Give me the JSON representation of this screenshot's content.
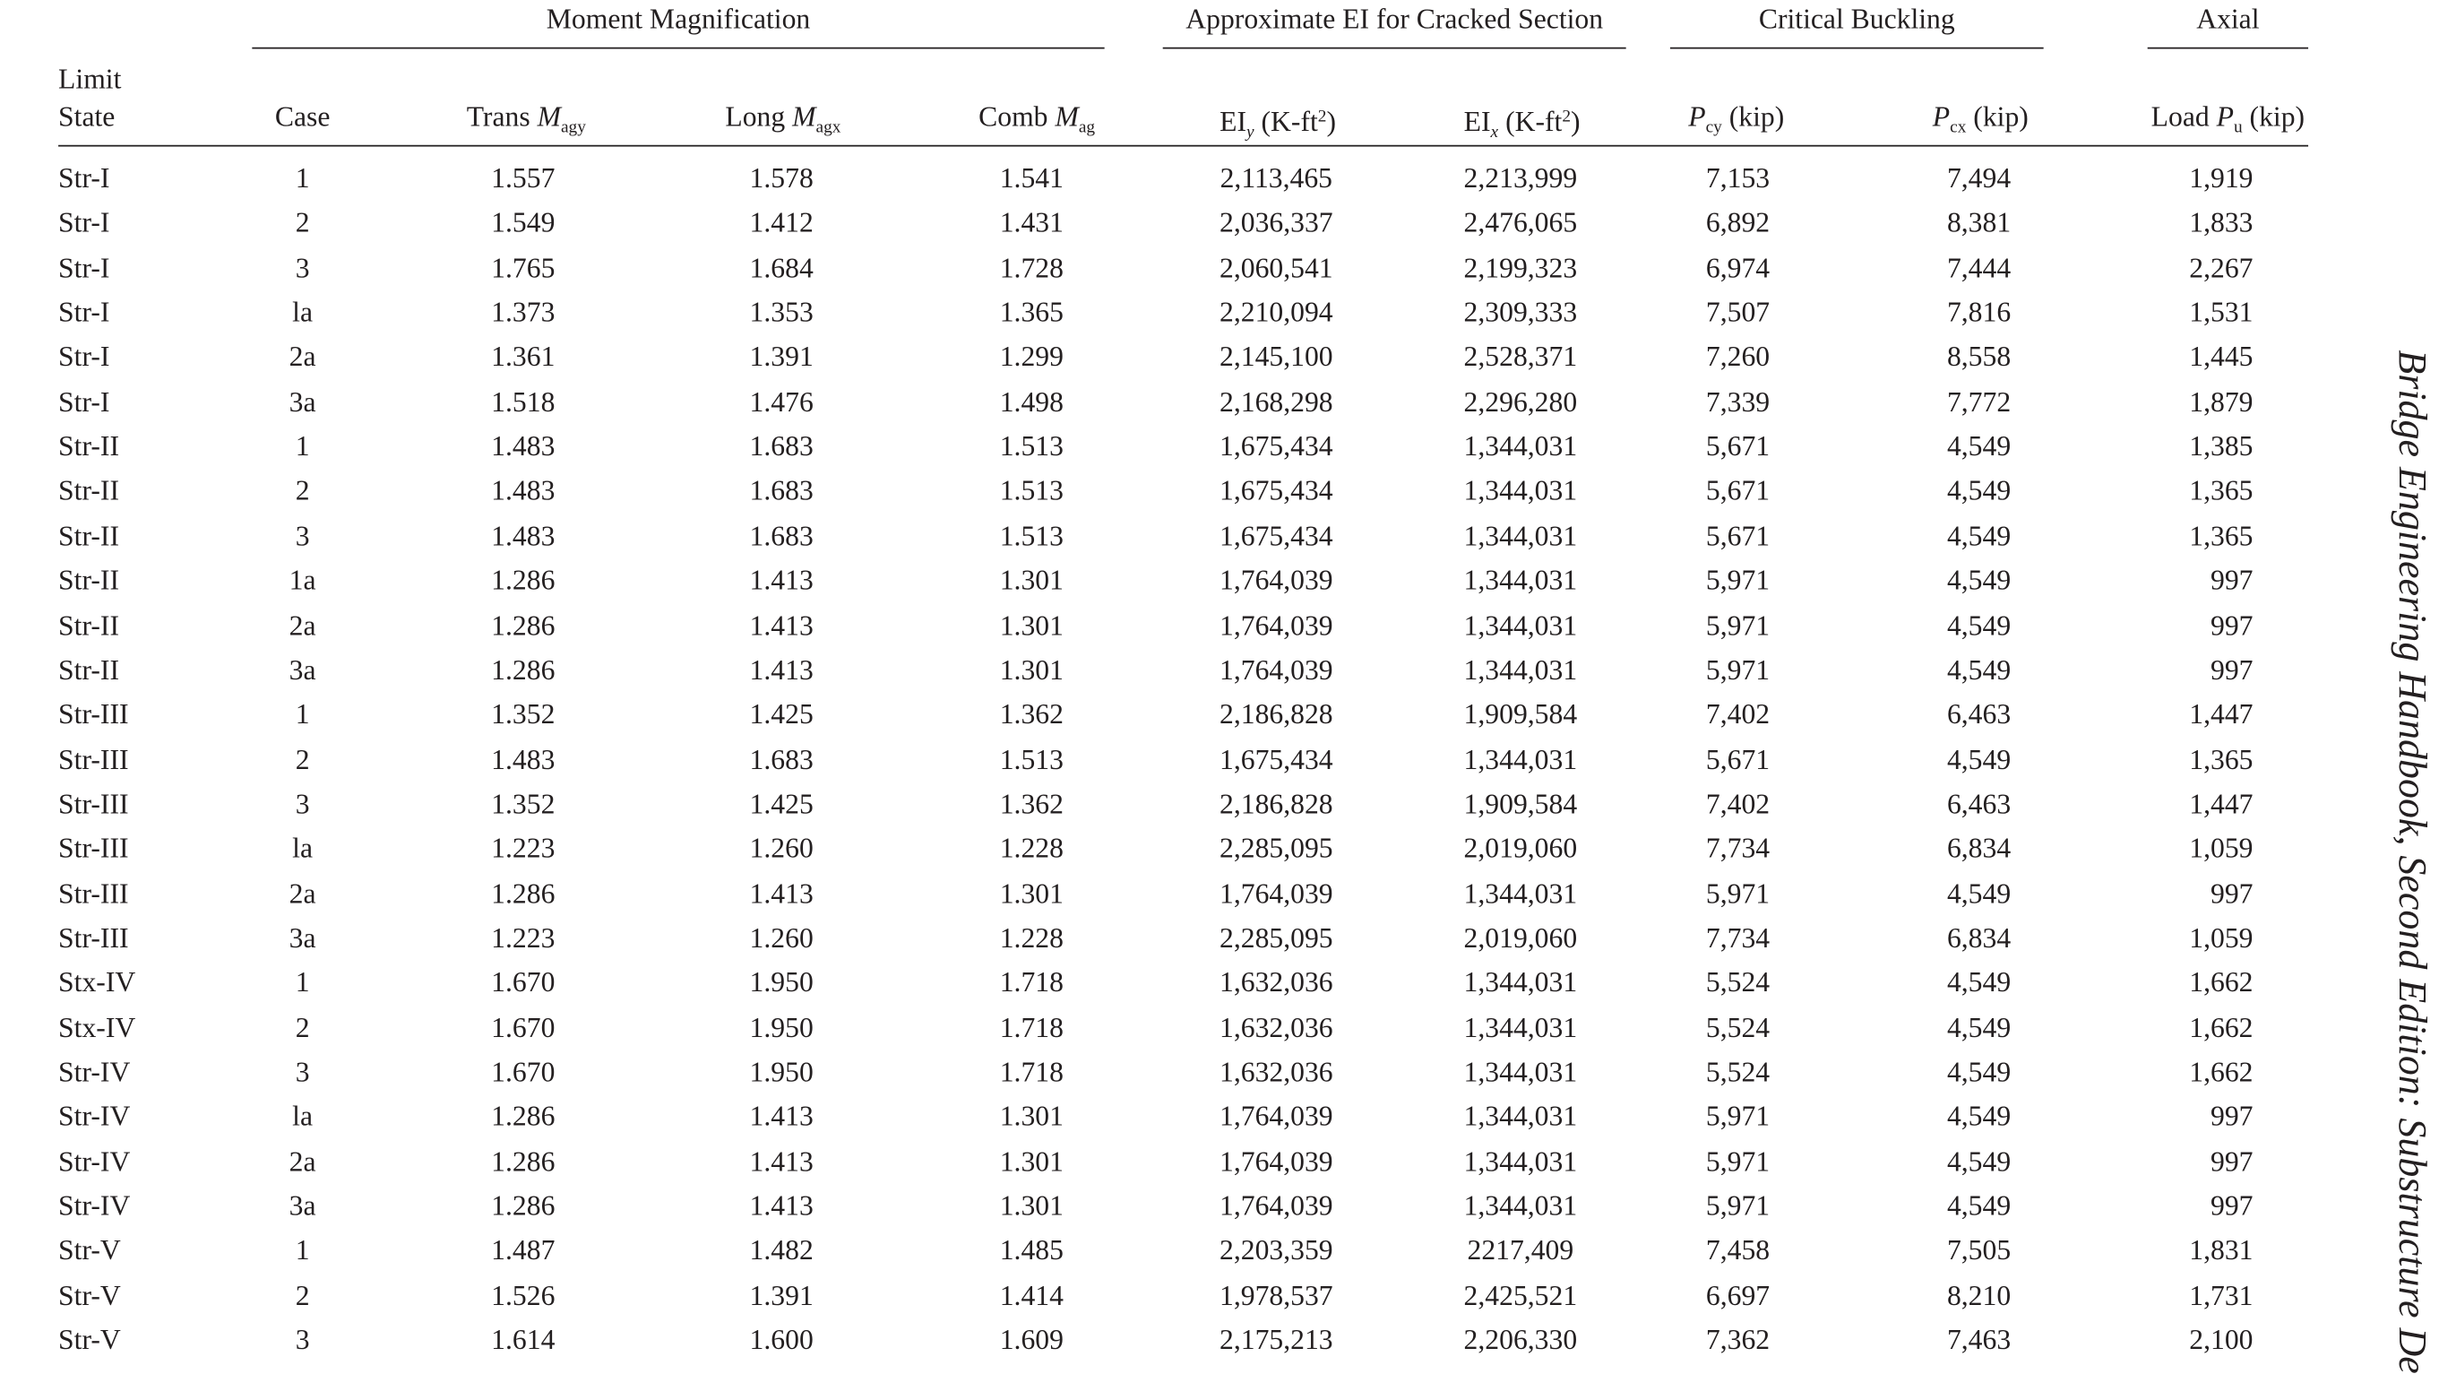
{
  "table": {
    "groups": [
      "Moment Magnification",
      "Approximate EI for Cracked Section",
      "Critical Buckling",
      "Axial"
    ],
    "columns": [
      [
        [
          "Limit",
          "block"
        ],
        [
          "State",
          "block"
        ]
      ],
      [
        [
          "Case",
          "n"
        ]
      ],
      [
        [
          "Trans ",
          "n"
        ],
        [
          "M",
          "i"
        ],
        [
          "agy",
          "sub"
        ]
      ],
      [
        [
          "Long ",
          "n"
        ],
        [
          "M",
          "i"
        ],
        [
          "agx",
          "sub"
        ]
      ],
      [
        [
          "Comb ",
          "n"
        ],
        [
          "M",
          "i"
        ],
        [
          "ag",
          "sub"
        ]
      ],
      [
        [
          "EI",
          "n"
        ],
        [
          "y",
          "isub"
        ],
        [
          " (K-ft",
          "n"
        ],
        [
          "2",
          "sup"
        ],
        [
          ")",
          "n"
        ]
      ],
      [
        [
          "EI",
          "n"
        ],
        [
          "x",
          "isub"
        ],
        [
          " (K-ft",
          "n"
        ],
        [
          "2",
          "sup"
        ],
        [
          ")",
          "n"
        ]
      ],
      [
        [
          "P",
          "i"
        ],
        [
          "cy",
          "sub"
        ],
        [
          " (kip)",
          "n"
        ]
      ],
      [
        [
          "P",
          "i"
        ],
        [
          "cx",
          "sub"
        ],
        [
          " (kip)",
          "n"
        ]
      ],
      [
        [
          "Load ",
          "n"
        ],
        [
          "P",
          "i"
        ],
        [
          "u",
          "sub"
        ],
        [
          " (kip)",
          "n"
        ]
      ]
    ],
    "rows": [
      [
        "Str-I",
        "1",
        "1.557",
        "1.578",
        "1.541",
        "2,113,465",
        "2,213,999",
        "7,153",
        "7,494",
        "1,919"
      ],
      [
        "Str-I",
        "2",
        "1.549",
        "1.412",
        "1.431",
        "2,036,337",
        "2,476,065",
        "6,892",
        "8,381",
        "1,833"
      ],
      [
        "Str-I",
        "3",
        "1.765",
        "1.684",
        "1.728",
        "2,060,541",
        "2,199,323",
        "6,974",
        "7,444",
        "2,267"
      ],
      [
        "Str-I",
        "la",
        "1.373",
        "1.353",
        "1.365",
        "2,210,094",
        "2,309,333",
        "7,507",
        "7,816",
        "1,531"
      ],
      [
        "Str-I",
        "2a",
        "1.361",
        "1.391",
        "1.299",
        "2,145,100",
        "2,528,371",
        "7,260",
        "8,558",
        "1,445"
      ],
      [
        "Str-I",
        "3a",
        "1.518",
        "1.476",
        "1.498",
        "2,168,298",
        "2,296,280",
        "7,339",
        "7,772",
        "1,879"
      ],
      [
        "Str-II",
        "1",
        "1.483",
        "1.683",
        "1.513",
        "1,675,434",
        "1,344,031",
        "5,671",
        "4,549",
        "1,385"
      ],
      [
        "Str-II",
        "2",
        "1.483",
        "1.683",
        "1.513",
        "1,675,434",
        "1,344,031",
        "5,671",
        "4,549",
        "1,365"
      ],
      [
        "Str-II",
        "3",
        "1.483",
        "1.683",
        "1.513",
        "1,675,434",
        "1,344,031",
        "5,671",
        "4,549",
        "1,365"
      ],
      [
        "Str-II",
        "1a",
        "1.286",
        "1.413",
        "1.301",
        "1,764,039",
        "1,344,031",
        "5,971",
        "4,549",
        "997"
      ],
      [
        "Str-II",
        "2a",
        "1.286",
        "1.413",
        "1.301",
        "1,764,039",
        "1,344,031",
        "5,971",
        "4,549",
        "997"
      ],
      [
        "Str-II",
        "3a",
        "1.286",
        "1.413",
        "1.301",
        "1,764,039",
        "1,344,031",
        "5,971",
        "4,549",
        "997"
      ],
      [
        "Str-III",
        "1",
        "1.352",
        "1.425",
        "1.362",
        "2,186,828",
        "1,909,584",
        "7,402",
        "6,463",
        "1,447"
      ],
      [
        "Str-III",
        "2",
        "1.483",
        "1.683",
        "1.513",
        "1,675,434",
        "1,344,031",
        "5,671",
        "4,549",
        "1,365"
      ],
      [
        "Str-III",
        "3",
        "1.352",
        "1.425",
        "1.362",
        "2,186,828",
        "1,909,584",
        "7,402",
        "6,463",
        "1,447"
      ],
      [
        "Str-III",
        "la",
        "1.223",
        "1.260",
        "1.228",
        "2,285,095",
        "2,019,060",
        "7,734",
        "6,834",
        "1,059"
      ],
      [
        "Str-III",
        "2a",
        "1.286",
        "1.413",
        "1.301",
        "1,764,039",
        "1,344,031",
        "5,971",
        "4,549",
        "997"
      ],
      [
        "Str-III",
        "3a",
        "1.223",
        "1.260",
        "1.228",
        "2,285,095",
        "2,019,060",
        "7,734",
        "6,834",
        "1,059"
      ],
      [
        "Stx-IV",
        "1",
        "1.670",
        "1.950",
        "1.718",
        "1,632,036",
        "1,344,031",
        "5,524",
        "4,549",
        "1,662"
      ],
      [
        "Stx-IV",
        "2",
        "1.670",
        "1.950",
        "1.718",
        "1,632,036",
        "1,344,031",
        "5,524",
        "4,549",
        "1,662"
      ],
      [
        "Str-IV",
        "3",
        "1.670",
        "1.950",
        "1.718",
        "1,632,036",
        "1,344,031",
        "5,524",
        "4,549",
        "1,662"
      ],
      [
        "Str-IV",
        "la",
        "1.286",
        "1.413",
        "1.301",
        "1,764,039",
        "1,344,031",
        "5,971",
        "4,549",
        "997"
      ],
      [
        "Str-IV",
        "2a",
        "1.286",
        "1.413",
        "1.301",
        "1,764,039",
        "1,344,031",
        "5,971",
        "4,549",
        "997"
      ],
      [
        "Str-IV",
        "3a",
        "1.286",
        "1.413",
        "1.301",
        "1,764,039",
        "1,344,031",
        "5,971",
        "4,549",
        "997"
      ],
      [
        "Str-V",
        "1",
        "1.487",
        "1.482",
        "1.485",
        "2,203,359",
        "2217,409",
        "7,458",
        "7,505",
        "1,831"
      ],
      [
        "Str-V",
        "2",
        "1.526",
        "1.391",
        "1.414",
        "1,978,537",
        "2,425,521",
        "6,697",
        "8,210",
        "1,731"
      ],
      [
        "Str-V",
        "3",
        "1.614",
        "1.600",
        "1.609",
        "2,175,213",
        "2,206,330",
        "7,362",
        "7,463",
        "2,100"
      ]
    ]
  },
  "side_text": "Bridge Engineering Handbook, Second Edition: Substructure De"
}
